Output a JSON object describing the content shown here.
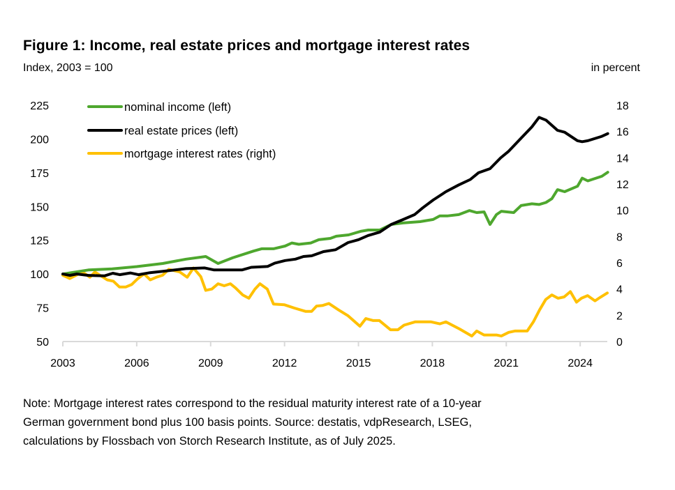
{
  "chart_data": {
    "type": "line",
    "title": "Figure 1: Income, real estate prices and mortgage interest rates",
    "subtitle": "Index, 2003 = 100",
    "y2label": "in percent",
    "xticks": [
      "2003",
      "2006",
      "2009",
      "2012",
      "2015",
      "2018",
      "2021",
      "2024"
    ],
    "xlim": [
      2003,
      2025.1
    ],
    "ylim": [
      50,
      225
    ],
    "yticks": [
      "50",
      "75",
      "100",
      "125",
      "150",
      "175",
      "200",
      "225"
    ],
    "y2lim": [
      0,
      18
    ],
    "y2ticks": [
      "0",
      "2",
      "4",
      "6",
      "8",
      "10",
      "12",
      "14",
      "16",
      "18"
    ],
    "grid": false,
    "legend_position": "top-left",
    "series": [
      {
        "name": "nominal income (left)",
        "axis": "left",
        "color": "#4ea72e",
        "points": [
          [
            2003,
            100
          ],
          [
            2004.04,
            103
          ],
          [
            2005.0,
            103.8
          ],
          [
            2006.0,
            105.5
          ],
          [
            2007.06,
            107.8
          ],
          [
            2008.0,
            111
          ],
          [
            2008.8,
            113
          ],
          [
            2009.3,
            107.8
          ],
          [
            2009.89,
            112
          ],
          [
            2010.74,
            117
          ],
          [
            2011.07,
            118.7
          ],
          [
            2011.55,
            118.7
          ],
          [
            2012.02,
            120.7
          ],
          [
            2012.3,
            123
          ],
          [
            2012.58,
            122
          ],
          [
            2013.06,
            123
          ],
          [
            2013.39,
            125.4
          ],
          [
            2013.86,
            126.4
          ],
          [
            2014.1,
            128
          ],
          [
            2014.6,
            129
          ],
          [
            2015.09,
            131.6
          ],
          [
            2015.4,
            132.6
          ],
          [
            2015.86,
            132.6
          ],
          [
            2016.33,
            136.7
          ],
          [
            2016.8,
            137.8
          ],
          [
            2017.5,
            138.8
          ],
          [
            2018.03,
            140.4
          ],
          [
            2018.3,
            143
          ],
          [
            2018.6,
            143
          ],
          [
            2019.07,
            144
          ],
          [
            2019.5,
            147
          ],
          [
            2019.8,
            145.5
          ],
          [
            2020.1,
            146
          ],
          [
            2020.34,
            136.7
          ],
          [
            2020.6,
            144
          ],
          [
            2020.8,
            146.5
          ],
          [
            2021.3,
            145.5
          ],
          [
            2021.6,
            150.7
          ],
          [
            2022.04,
            152
          ],
          [
            2022.33,
            151.5
          ],
          [
            2022.61,
            153
          ],
          [
            2022.85,
            155.8
          ],
          [
            2023.08,
            162.5
          ],
          [
            2023.37,
            161
          ],
          [
            2023.89,
            165
          ],
          [
            2024.08,
            171
          ],
          [
            2024.31,
            169
          ],
          [
            2024.88,
            172.4
          ],
          [
            2025.12,
            175.4
          ]
        ]
      },
      {
        "name": "real estate prices (left)",
        "axis": "left",
        "color": "#000000",
        "points": [
          [
            2003,
            100
          ],
          [
            2003.28,
            99
          ],
          [
            2003.57,
            100
          ],
          [
            2004.04,
            99
          ],
          [
            2004.7,
            98.7
          ],
          [
            2005.03,
            100.6
          ],
          [
            2005.31,
            99.5
          ],
          [
            2005.74,
            100.8
          ],
          [
            2006.07,
            99.5
          ],
          [
            2006.54,
            101
          ],
          [
            2007.06,
            102
          ],
          [
            2008.0,
            104
          ],
          [
            2008.76,
            104.5
          ],
          [
            2009.14,
            103
          ],
          [
            2010.27,
            103
          ],
          [
            2010.65,
            105
          ],
          [
            2011.31,
            105.6
          ],
          [
            2011.6,
            108
          ],
          [
            2012.02,
            110
          ],
          [
            2012.44,
            111
          ],
          [
            2012.77,
            113
          ],
          [
            2013.1,
            113.5
          ],
          [
            2013.58,
            116.6
          ],
          [
            2014.07,
            118
          ],
          [
            2014.58,
            123.3
          ],
          [
            2015.0,
            125.4
          ],
          [
            2015.39,
            128.5
          ],
          [
            2015.86,
            131
          ],
          [
            2016.33,
            136.7
          ],
          [
            2016.8,
            140.3
          ],
          [
            2017.28,
            144
          ],
          [
            2017.61,
            149
          ],
          [
            2018.03,
            154.8
          ],
          [
            2018.55,
            161
          ],
          [
            2019.07,
            166
          ],
          [
            2019.54,
            170
          ],
          [
            2019.87,
            175
          ],
          [
            2020.34,
            178
          ],
          [
            2020.77,
            186
          ],
          [
            2021.1,
            191
          ],
          [
            2021.62,
            201
          ],
          [
            2022.04,
            209
          ],
          [
            2022.33,
            216
          ],
          [
            2022.61,
            214
          ],
          [
            2023.08,
            206.4
          ],
          [
            2023.37,
            205
          ],
          [
            2023.89,
            198.7
          ],
          [
            2024.08,
            198
          ],
          [
            2024.31,
            198.7
          ],
          [
            2024.88,
            202
          ],
          [
            2025.12,
            204
          ]
        ]
      },
      {
        "name": "mortgage interest rates (right)",
        "axis": "right",
        "color": "#ffc000",
        "points": [
          [
            2003.0,
            5.05
          ],
          [
            2003.28,
            4.8
          ],
          [
            2003.8,
            5.3
          ],
          [
            2004.1,
            4.9
          ],
          [
            2004.3,
            5.3
          ],
          [
            2004.8,
            4.7
          ],
          [
            2005.05,
            4.6
          ],
          [
            2005.3,
            4.15
          ],
          [
            2005.55,
            4.15
          ],
          [
            2005.8,
            4.35
          ],
          [
            2006.05,
            4.8
          ],
          [
            2006.3,
            5.15
          ],
          [
            2006.55,
            4.7
          ],
          [
            2006.8,
            4.9
          ],
          [
            2007.05,
            5.05
          ],
          [
            2007.3,
            5.5
          ],
          [
            2007.75,
            5.3
          ],
          [
            2008.05,
            4.9
          ],
          [
            2008.3,
            5.6
          ],
          [
            2008.6,
            4.95
          ],
          [
            2008.8,
            3.9
          ],
          [
            2009.05,
            4.0
          ],
          [
            2009.3,
            4.4
          ],
          [
            2009.55,
            4.25
          ],
          [
            2009.8,
            4.4
          ],
          [
            2010.0,
            4.1
          ],
          [
            2010.3,
            3.55
          ],
          [
            2010.55,
            3.3
          ],
          [
            2010.8,
            4.0
          ],
          [
            2011.0,
            4.4
          ],
          [
            2011.3,
            4.0
          ],
          [
            2011.55,
            2.85
          ],
          [
            2012.0,
            2.8
          ],
          [
            2012.4,
            2.55
          ],
          [
            2012.85,
            2.3
          ],
          [
            2013.1,
            2.3
          ],
          [
            2013.3,
            2.7
          ],
          [
            2013.55,
            2.75
          ],
          [
            2013.8,
            2.9
          ],
          [
            2014.2,
            2.4
          ],
          [
            2014.58,
            1.96
          ],
          [
            2015.06,
            1.17
          ],
          [
            2015.3,
            1.75
          ],
          [
            2015.6,
            1.6
          ],
          [
            2015.85,
            1.6
          ],
          [
            2016.3,
            0.9
          ],
          [
            2016.6,
            0.9
          ],
          [
            2016.85,
            1.25
          ],
          [
            2017.3,
            1.5
          ],
          [
            2017.95,
            1.5
          ],
          [
            2018.3,
            1.35
          ],
          [
            2018.55,
            1.5
          ],
          [
            2019.1,
            0.96
          ],
          [
            2019.6,
            0.42
          ],
          [
            2019.8,
            0.8
          ],
          [
            2020.1,
            0.5
          ],
          [
            2020.6,
            0.5
          ],
          [
            2020.8,
            0.42
          ],
          [
            2021.1,
            0.7
          ],
          [
            2021.35,
            0.8
          ],
          [
            2021.85,
            0.8
          ],
          [
            2022.1,
            1.5
          ],
          [
            2022.35,
            2.4
          ],
          [
            2022.6,
            3.2
          ],
          [
            2022.85,
            3.55
          ],
          [
            2023.1,
            3.3
          ],
          [
            2023.35,
            3.4
          ],
          [
            2023.6,
            3.8
          ],
          [
            2023.85,
            3.0
          ],
          [
            2024.05,
            3.3
          ],
          [
            2024.3,
            3.5
          ],
          [
            2024.6,
            3.1
          ],
          [
            2024.8,
            3.35
          ],
          [
            2025.1,
            3.7
          ]
        ]
      }
    ],
    "note": "Note: Mortgage interest rates correspond to the residual maturity interest rate of a 10-year German government bond plus 100 basis points. Source: destatis, vdpResearch, LSEG, calculations by Flossbach von Storch Research Institute, as of July 2025."
  },
  "note_lines": [
    "Note: Mortgage interest rates correspond to the residual maturity interest rate of a 10-year",
    "German government bond plus 100 basis points. Source: destatis, vdpResearch, LSEG,",
    "calculations by Flossbach von Storch Research Institute, as of July 2025."
  ]
}
